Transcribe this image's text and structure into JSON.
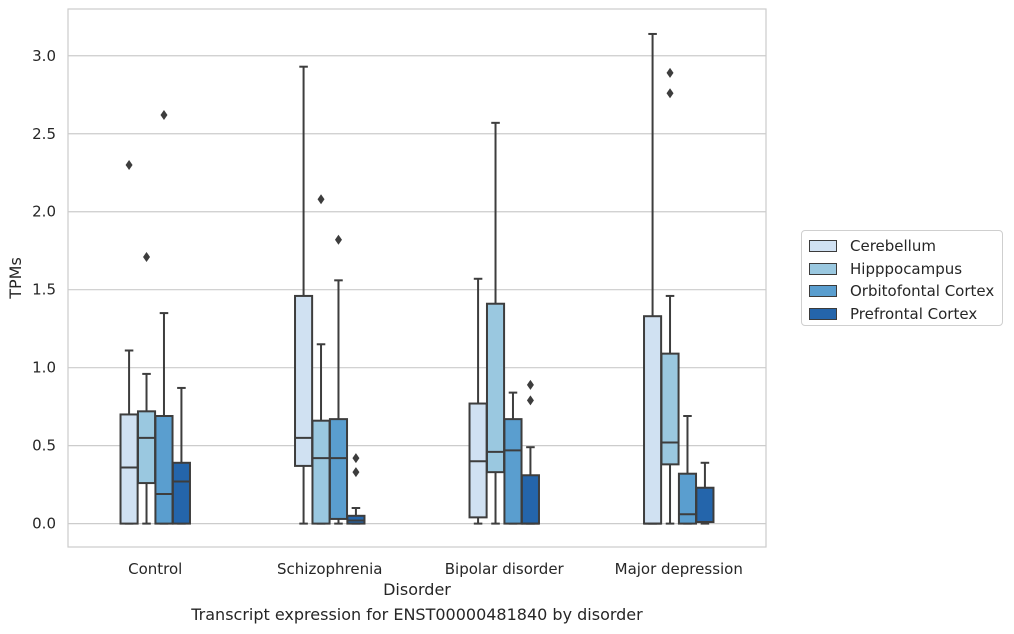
{
  "chart_data": {
    "type": "boxplot",
    "title": "",
    "caption": "Transcript expression for ENST00000481840 by disorder",
    "xlabel": "Disorder",
    "ylabel": "TPMs",
    "ylim": [
      -0.15,
      3.3
    ],
    "yticks": [
      "0.0",
      "0.5",
      "1.0",
      "1.5",
      "2.0",
      "2.5",
      "3.0"
    ],
    "grid": "horizontal",
    "legend_position": "right",
    "categories": [
      "Control",
      "Schizophrenia",
      "Bipolar disorder",
      "Major depression"
    ],
    "series": [
      {
        "name": "Cerebellum",
        "color": "#d0e1f2",
        "boxes": [
          {
            "whisker_low": 0.0,
            "q1": 0.0,
            "median": 0.36,
            "q3": 0.7,
            "whisker_high": 1.11,
            "outliers": [
              2.3
            ]
          },
          {
            "whisker_low": 0.0,
            "q1": 0.37,
            "median": 0.55,
            "q3": 1.46,
            "whisker_high": 2.93,
            "outliers": []
          },
          {
            "whisker_low": 0.0,
            "q1": 0.04,
            "median": 0.4,
            "q3": 0.77,
            "whisker_high": 1.57,
            "outliers": []
          },
          {
            "whisker_low": 0.0,
            "q1": 0.0,
            "median": 0.0,
            "q3": 1.33,
            "whisker_high": 3.14,
            "outliers": []
          }
        ]
      },
      {
        "name": "Hipppocampus",
        "color": "#9ac8e0",
        "boxes": [
          {
            "whisker_low": 0.0,
            "q1": 0.26,
            "median": 0.55,
            "q3": 0.72,
            "whisker_high": 0.96,
            "outliers": [
              1.71
            ]
          },
          {
            "whisker_low": 0.0,
            "q1": 0.0,
            "median": 0.42,
            "q3": 0.66,
            "whisker_high": 1.15,
            "outliers": [
              2.08
            ]
          },
          {
            "whisker_low": 0.0,
            "q1": 0.33,
            "median": 0.46,
            "q3": 1.41,
            "whisker_high": 2.57,
            "outliers": []
          },
          {
            "whisker_low": 0.0,
            "q1": 0.38,
            "median": 0.52,
            "q3": 1.09,
            "whisker_high": 1.46,
            "outliers": [
              2.76,
              2.89
            ]
          }
        ]
      },
      {
        "name": "Orbitofontal Cortex",
        "color": "#5a9ecf",
        "boxes": [
          {
            "whisker_low": 0.0,
            "q1": 0.0,
            "median": 0.19,
            "q3": 0.69,
            "whisker_high": 1.35,
            "outliers": [
              2.62
            ]
          },
          {
            "whisker_low": 0.0,
            "q1": 0.03,
            "median": 0.42,
            "q3": 0.67,
            "whisker_high": 1.56,
            "outliers": [
              1.82
            ]
          },
          {
            "whisker_low": 0.0,
            "q1": 0.0,
            "median": 0.47,
            "q3": 0.67,
            "whisker_high": 0.84,
            "outliers": []
          },
          {
            "whisker_low": 0.0,
            "q1": 0.0,
            "median": 0.06,
            "q3": 0.32,
            "whisker_high": 0.69,
            "outliers": []
          }
        ]
      },
      {
        "name": "Prefrontal Cortex",
        "color": "#2465ab",
        "boxes": [
          {
            "whisker_low": 0.0,
            "q1": 0.0,
            "median": 0.27,
            "q3": 0.39,
            "whisker_high": 0.87,
            "outliers": []
          },
          {
            "whisker_low": 0.0,
            "q1": 0.0,
            "median": 0.02,
            "q3": 0.05,
            "whisker_high": 0.1,
            "outliers": [
              0.33,
              0.42
            ]
          },
          {
            "whisker_low": 0.0,
            "q1": 0.0,
            "median": 0.0,
            "q3": 0.31,
            "whisker_high": 0.49,
            "outliers": [
              0.79,
              0.89
            ]
          },
          {
            "whisker_low": 0.0,
            "q1": 0.01,
            "median": 0.01,
            "q3": 0.23,
            "whisker_high": 0.39,
            "outliers": []
          }
        ]
      }
    ]
  }
}
